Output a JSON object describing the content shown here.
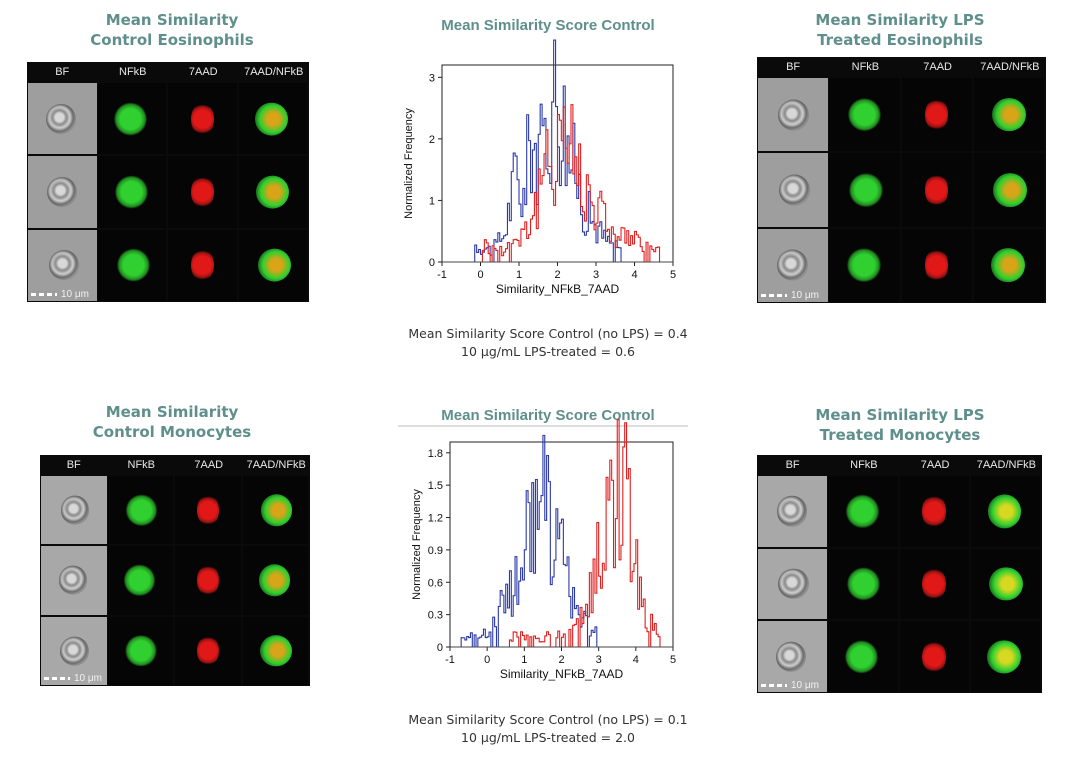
{
  "panels": {
    "ctrl_eos": {
      "title_l1": "Mean Similarity",
      "title_l2": "Control Eosinophils"
    },
    "lps_eos": {
      "title_l1": "Mean Similarity LPS",
      "title_l2": "Treated Eosinophils"
    },
    "ctrl_mono": {
      "title_l1": "Mean Similarity",
      "title_l2": "Control Monocytes"
    },
    "lps_mono": {
      "title_l1": "Mean Similarity LPS",
      "title_l2": "Treated Monocytes"
    }
  },
  "grid_headers": [
    "BF",
    "NFkB",
    "7AAD",
    "7AAD/NFkB"
  ],
  "scale_label": "10 μm",
  "captions": {
    "top_l1": "Mean Similarity Score  Control (no LPS) = 0.4",
    "top_l2": "10 μg/mL LPS-treated = 0.6",
    "bottom_l1": "Mean Similarity Score  Control (no LPS) = 0.1",
    "bottom_l2": "10 μg/mL LPS-treated = 2.0"
  },
  "colors": {
    "title": "#5f8f8c",
    "control": "#2b3aa8",
    "lps": "#e02020",
    "nfkb": "#2fd02f",
    "aad": "#e01818",
    "overlay": "#d8d820"
  },
  "chart_data": [
    {
      "type": "line",
      "title": "Mean Similarity Score Control",
      "xlabel": "Similarity_NFkB_7AAD",
      "ylabel": "Normalized Frequency",
      "xlim": [
        -1,
        5
      ],
      "ylim": [
        0,
        3.2
      ],
      "xticks": [
        "-1",
        "0",
        "1",
        "2",
        "3",
        "4",
        "5"
      ],
      "yticks": [
        "0",
        "1",
        "2",
        "3"
      ],
      "yticks_values": [
        0,
        1,
        2,
        3
      ],
      "series": [
        {
          "name": "Control (no LPS)",
          "color": "#2b3aa8",
          "x": [
            -0.2,
            0.3,
            0.6,
            0.9,
            1.1,
            1.3,
            1.5,
            1.7,
            1.9,
            2.1,
            2.3,
            2.5,
            2.7,
            2.9,
            3.2,
            3.6
          ],
          "values": [
            0.3,
            0.2,
            0.5,
            1.5,
            1.1,
            2.3,
            1.6,
            2.4,
            2.9,
            2.6,
            1.8,
            1.4,
            0.9,
            0.7,
            0.4,
            0.2
          ]
        },
        {
          "name": "10 μg/mL LPS-treated",
          "color": "#e02020",
          "x": [
            0.0,
            0.5,
            0.9,
            1.3,
            1.6,
            1.9,
            2.1,
            2.3,
            2.5,
            2.8,
            3.1,
            3.4,
            3.8,
            4.2,
            4.6
          ],
          "values": [
            0.3,
            0.2,
            0.4,
            0.7,
            1.3,
            2.0,
            2.5,
            2.1,
            1.6,
            1.2,
            0.9,
            0.5,
            0.4,
            0.3,
            0.2
          ]
        }
      ]
    },
    {
      "type": "line",
      "title": "Mean Similarity Score Control",
      "xlabel": "Similarity_NFkB_7AAD",
      "ylabel": "Normalized Frequency",
      "xlim": [
        -1,
        5
      ],
      "ylim": [
        0,
        1.9
      ],
      "xticks": [
        "-1",
        "0",
        "1",
        "2",
        "3",
        "4",
        "5"
      ],
      "yticks": [
        "0",
        "0.3",
        "0.6",
        "0.9",
        "1.2",
        "1.5",
        "1.8"
      ],
      "yticks_values": [
        0,
        0.3,
        0.6,
        0.9,
        1.2,
        1.5,
        1.8
      ],
      "series": [
        {
          "name": "Control (no LPS)",
          "color": "#2b3aa8",
          "x": [
            -0.7,
            -0.2,
            0.1,
            0.4,
            0.7,
            0.9,
            1.1,
            1.3,
            1.5,
            1.7,
            1.9,
            2.1,
            2.3,
            2.6,
            2.9
          ],
          "values": [
            0.1,
            0.1,
            0.2,
            0.4,
            0.6,
            0.9,
            1.1,
            1.3,
            1.45,
            1.2,
            1.0,
            0.7,
            0.4,
            0.3,
            0.15
          ]
        },
        {
          "name": "10 μg/mL LPS-treated",
          "color": "#e02020",
          "x": [
            0.6,
            1.2,
            1.8,
            2.3,
            2.6,
            2.9,
            3.1,
            3.3,
            3.5,
            3.7,
            3.9,
            4.1,
            4.3,
            4.6
          ],
          "values": [
            0.1,
            0.1,
            0.1,
            0.2,
            0.4,
            0.8,
            1.1,
            1.5,
            1.75,
            1.5,
            1.1,
            0.6,
            0.3,
            0.1
          ]
        }
      ]
    }
  ]
}
